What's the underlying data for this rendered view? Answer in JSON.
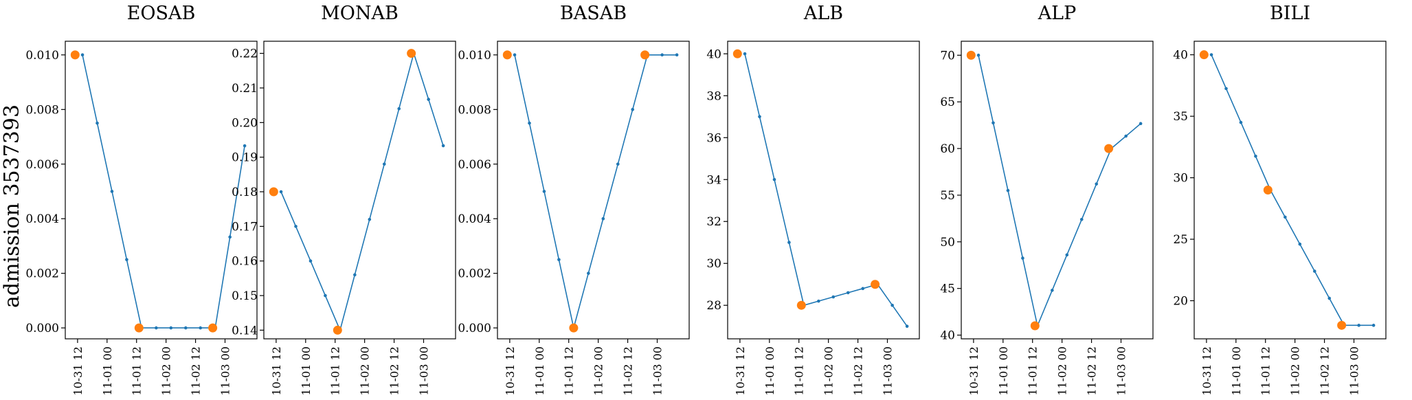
{
  "figure": {
    "ylabel": "admission 3537393"
  },
  "colors": {
    "line": "#1f77b4",
    "highlight": "#ff7f0e"
  },
  "x_tick_labels": [
    "10-31 12",
    "11-01 00",
    "11-01 12",
    "11-02 00",
    "11-02 12",
    "11-03 00"
  ],
  "chart_data": [
    {
      "type": "line",
      "title": "EOSAB",
      "x": [
        "10-31 14",
        "10-31 20",
        "11-01 02",
        "11-01 08",
        "11-01 14",
        "11-01 20",
        "11-02 02",
        "11-02 08",
        "11-02 14",
        "11-02 20",
        "11-03 02",
        "11-03 08"
      ],
      "values": [
        0.01,
        0.0075,
        0.005,
        0.0025,
        0.0,
        0.0,
        0.0,
        0.0,
        0.0,
        0.0,
        0.00333,
        0.00667
      ],
      "highlight": [
        {
          "x": "10-31 11",
          "y": 0.01
        },
        {
          "x": "11-01 13",
          "y": 0.0
        },
        {
          "x": "11-02 19",
          "y": 0.0
        }
      ],
      "ylim": [
        -0.0004,
        0.0105
      ],
      "yticks": [
        0.0,
        0.002,
        0.004,
        0.006,
        0.008,
        0.01
      ],
      "ytick_labels": [
        "0.000",
        "0.002",
        "0.004",
        "0.006",
        "0.008",
        "0.010"
      ]
    },
    {
      "type": "line",
      "title": "MONAB",
      "x": [
        "10-31 14",
        "10-31 20",
        "11-01 02",
        "11-01 08",
        "11-01 14",
        "11-01 20",
        "11-02 02",
        "11-02 08",
        "11-02 14",
        "11-02 20",
        "11-03 02",
        "11-03 08"
      ],
      "values": [
        0.18,
        0.17,
        0.16,
        0.15,
        0.14,
        0.156,
        0.172,
        0.188,
        0.204,
        0.22,
        0.2067,
        0.1933
      ],
      "highlight": [
        {
          "x": "10-31 11",
          "y": 0.18
        },
        {
          "x": "11-01 13",
          "y": 0.14
        },
        {
          "x": "11-02 19",
          "y": 0.22
        }
      ],
      "ylim": [
        0.1375,
        0.2235
      ],
      "yticks": [
        0.14,
        0.15,
        0.16,
        0.17,
        0.18,
        0.19,
        0.2,
        0.21,
        0.22
      ],
      "ytick_labels": [
        "0.14",
        "0.15",
        "0.16",
        "0.17",
        "0.18",
        "0.19",
        "0.20",
        "0.21",
        "0.22"
      ]
    },
    {
      "type": "line",
      "title": "BASAB",
      "x": [
        "10-31 14",
        "10-31 20",
        "11-01 02",
        "11-01 08",
        "11-01 14",
        "11-01 20",
        "11-02 02",
        "11-02 08",
        "11-02 14",
        "11-02 20",
        "11-03 02",
        "11-03 08"
      ],
      "values": [
        0.01,
        0.0075,
        0.005,
        0.0025,
        0.0,
        0.002,
        0.004,
        0.006,
        0.008,
        0.01,
        0.01,
        0.01
      ],
      "highlight": [
        {
          "x": "10-31 11",
          "y": 0.01
        },
        {
          "x": "11-01 14",
          "y": 0.0
        },
        {
          "x": "11-02 19",
          "y": 0.01
        }
      ],
      "ylim": [
        -0.0004,
        0.0105
      ],
      "yticks": [
        0.0,
        0.002,
        0.004,
        0.006,
        0.008,
        0.01
      ],
      "ytick_labels": [
        "0.000",
        "0.002",
        "0.004",
        "0.006",
        "0.008",
        "0.010"
      ]
    },
    {
      "type": "line",
      "title": "ALB",
      "x": [
        "10-31 14",
        "10-31 20",
        "11-01 02",
        "11-01 08",
        "11-01 14",
        "11-01 20",
        "11-02 02",
        "11-02 08",
        "11-02 14",
        "11-02 20",
        "11-03 02",
        "11-03 08"
      ],
      "values": [
        40,
        37,
        34,
        31,
        28,
        28.2,
        28.4,
        28.6,
        28.8,
        29,
        28,
        27
      ],
      "highlight": [
        {
          "x": "10-31 11",
          "y": 40
        },
        {
          "x": "11-01 13",
          "y": 28
        },
        {
          "x": "11-02 19",
          "y": 29
        }
      ],
      "ylim": [
        26.4,
        40.6
      ],
      "yticks": [
        28,
        30,
        32,
        34,
        36,
        38,
        40
      ],
      "ytick_labels": [
        "28",
        "30",
        "32",
        "34",
        "36",
        "38",
        "40"
      ]
    },
    {
      "type": "line",
      "title": "ALP",
      "x": [
        "10-31 14",
        "10-31 20",
        "11-01 02",
        "11-01 08",
        "11-01 14",
        "11-01 20",
        "11-02 02",
        "11-02 08",
        "11-02 14",
        "11-02 20",
        "11-03 02",
        "11-03 08"
      ],
      "values": [
        70,
        62.75,
        55.5,
        48.25,
        41,
        44.8,
        48.6,
        52.4,
        56.2,
        60,
        61.33,
        62.67
      ],
      "highlight": [
        {
          "x": "10-31 11",
          "y": 70
        },
        {
          "x": "11-01 13",
          "y": 41
        },
        {
          "x": "11-02 19",
          "y": 60
        }
      ],
      "ylim": [
        39.6,
        71.5
      ],
      "yticks": [
        40,
        45,
        50,
        55,
        60,
        65,
        70
      ],
      "ytick_labels": [
        "40",
        "45",
        "50",
        "55",
        "60",
        "65",
        "70"
      ]
    },
    {
      "type": "line",
      "title": "BILI",
      "x": [
        "10-31 14",
        "10-31 20",
        "11-01 02",
        "11-01 08",
        "11-01 14",
        "11-01 20",
        "11-02 02",
        "11-02 08",
        "11-02 14",
        "11-02 20",
        "11-03 02",
        "11-03 08"
      ],
      "values": [
        40,
        37.25,
        34.5,
        31.75,
        29,
        26.8,
        24.6,
        22.4,
        20.2,
        18,
        18,
        18
      ],
      "highlight": [
        {
          "x": "10-31 11",
          "y": 40
        },
        {
          "x": "11-01 13",
          "y": 29
        },
        {
          "x": "11-02 19",
          "y": 18
        }
      ],
      "ylim": [
        16.9,
        41.1
      ],
      "yticks": [
        20,
        25,
        30,
        35,
        40
      ],
      "ytick_labels": [
        "20",
        "25",
        "30",
        "35",
        "40"
      ]
    }
  ]
}
